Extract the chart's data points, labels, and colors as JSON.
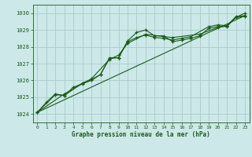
{
  "title": "Graphe pression niveau de la mer (hPa)",
  "background_color": "#cce8e8",
  "grid_color": "#aacccc",
  "line_color": "#1a5c1a",
  "xlim": [
    -0.5,
    23.5
  ],
  "ylim": [
    1023.5,
    1030.5
  ],
  "xticks": [
    0,
    1,
    2,
    3,
    4,
    5,
    6,
    7,
    8,
    9,
    10,
    11,
    12,
    13,
    14,
    15,
    16,
    17,
    18,
    19,
    20,
    21,
    22,
    23
  ],
  "yticks": [
    1024,
    1025,
    1026,
    1027,
    1028,
    1029,
    1030
  ],
  "series1": [
    [
      0,
      1024.1
    ],
    [
      1,
      1024.7
    ],
    [
      2,
      1025.2
    ],
    [
      3,
      1025.1
    ],
    [
      4,
      1025.6
    ],
    [
      5,
      1025.8
    ],
    [
      6,
      1026.0
    ],
    [
      7,
      1026.35
    ],
    [
      8,
      1027.3
    ],
    [
      9,
      1027.35
    ],
    [
      10,
      1028.35
    ],
    [
      11,
      1028.85
    ],
    [
      12,
      1029.0
    ],
    [
      13,
      1028.65
    ],
    [
      14,
      1028.65
    ],
    [
      15,
      1028.3
    ],
    [
      16,
      1028.4
    ],
    [
      17,
      1028.5
    ],
    [
      18,
      1028.65
    ],
    [
      19,
      1029.1
    ],
    [
      20,
      1029.2
    ],
    [
      21,
      1029.2
    ],
    [
      22,
      1029.75
    ],
    [
      23,
      1029.8
    ]
  ],
  "series2": [
    [
      0,
      1024.1
    ],
    [
      2,
      1025.15
    ],
    [
      3,
      1025.1
    ],
    [
      5,
      1025.85
    ],
    [
      6,
      1026.05
    ],
    [
      7,
      1026.35
    ],
    [
      8,
      1027.35
    ],
    [
      9,
      1027.35
    ],
    [
      10,
      1028.3
    ],
    [
      11,
      1028.55
    ],
    [
      12,
      1028.7
    ],
    [
      13,
      1028.55
    ],
    [
      14,
      1028.5
    ],
    [
      15,
      1028.4
    ],
    [
      16,
      1028.5
    ],
    [
      17,
      1028.6
    ],
    [
      19,
      1029.2
    ],
    [
      20,
      1029.3
    ],
    [
      21,
      1029.25
    ],
    [
      22,
      1029.8
    ],
    [
      23,
      1029.85
    ]
  ],
  "series3": [
    [
      0,
      1024.1
    ],
    [
      3,
      1025.2
    ],
    [
      6,
      1026.1
    ],
    [
      8,
      1027.25
    ],
    [
      9,
      1027.5
    ],
    [
      10,
      1028.2
    ],
    [
      12,
      1028.75
    ],
    [
      14,
      1028.6
    ],
    [
      15,
      1028.55
    ],
    [
      18,
      1028.75
    ],
    [
      20,
      1029.15
    ],
    [
      21,
      1029.25
    ],
    [
      22,
      1029.75
    ],
    [
      23,
      1030.0
    ]
  ],
  "series4": [
    [
      0,
      1024.1
    ],
    [
      23,
      1029.85
    ]
  ]
}
